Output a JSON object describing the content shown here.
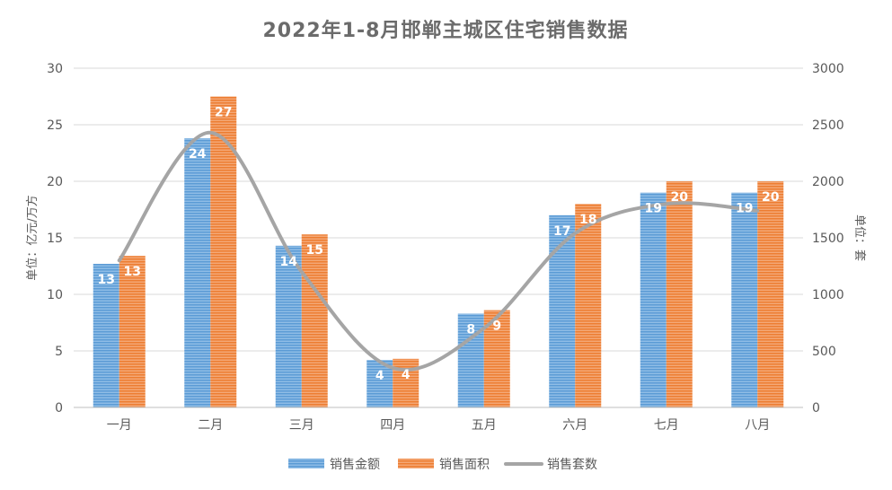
{
  "chart_data": {
    "type": "bar",
    "title": "2022年1-8月邯郸主城区住宅销售数据",
    "categories": [
      "一月",
      "二月",
      "三月",
      "四月",
      "五月",
      "六月",
      "七月",
      "八月"
    ],
    "series": [
      {
        "name": "销售金额",
        "type": "bar",
        "axis": "left",
        "color": "#5b9bd5",
        "values": [
          12.7,
          23.8,
          14.3,
          4.2,
          8.3,
          17.0,
          19.0,
          19.0
        ],
        "labels": [
          "13",
          "24",
          "14",
          "4",
          "8",
          "17",
          "19",
          "19"
        ]
      },
      {
        "name": "销售面积",
        "type": "bar",
        "axis": "left",
        "color": "#ed7d31",
        "values": [
          13.4,
          27.5,
          15.3,
          4.3,
          8.6,
          18.0,
          20.0,
          20.0
        ],
        "labels": [
          "13",
          "27",
          "15",
          "4",
          "9",
          "18",
          "20",
          "20"
        ]
      },
      {
        "name": "销售套数",
        "type": "line",
        "axis": "right",
        "color": "#a5a5a5",
        "smooth": true,
        "values": [
          1300,
          2430,
          1200,
          350,
          700,
          1540,
          1800,
          1740
        ]
      }
    ],
    "ylabel": "单位：亿元/万方",
    "y2label": "单位：套",
    "ylim": [
      0,
      30
    ],
    "y2lim": [
      0,
      3000
    ],
    "yticks": [
      0,
      5,
      10,
      15,
      20,
      25,
      30
    ],
    "y2ticks": [
      0,
      500,
      1000,
      1500,
      2000,
      2500,
      3000
    ],
    "grid": true,
    "legend_position": "bottom"
  }
}
